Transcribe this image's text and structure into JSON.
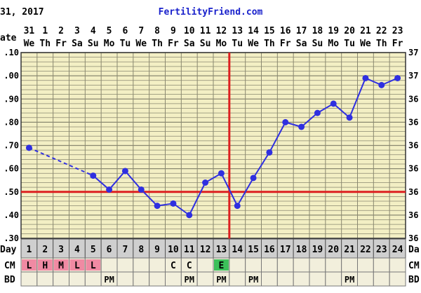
{
  "header": {
    "date_fragment": "31, 2017",
    "site": "FertilityFriend.com"
  },
  "colors": {
    "grid_bg": "#f3efc4",
    "grid_line": "#8a8870",
    "series": "#2f2fe0",
    "coverline": "#dd2020",
    "row_bg": "#f2efdc",
    "day_row_bg": "#cfcfcf",
    "cm_pink": "#f08aa3",
    "cm_green": "#3cc05a"
  },
  "chart_data": {
    "type": "line",
    "title": "",
    "left_tick_labels": [
      ".30",
      ".40",
      ".50",
      ".60",
      ".70",
      ".80",
      ".90",
      ".00",
      ".10"
    ],
    "right_tick_labels": [
      "36",
      "36",
      "36",
      "36",
      "36",
      "36",
      "36",
      "37",
      "37"
    ],
    "left_axis_fragment": "ate",
    "ylim": [
      0.3,
      1.1
    ],
    "dates": [
      "31",
      "1",
      "2",
      "3",
      "4",
      "5",
      "6",
      "7",
      "8",
      "9",
      "10",
      "11",
      "12",
      "13",
      "14",
      "15",
      "16",
      "17",
      "18",
      "19",
      "20",
      "21",
      "22",
      "23"
    ],
    "weekdays": [
      "We",
      "Th",
      "Fr",
      "Sa",
      "Su",
      "Mo",
      "Tu",
      "We",
      "Th",
      "Fr",
      "Sa",
      "Su",
      "Mo",
      "Tu",
      "We",
      "Th",
      "Fr",
      "Sa",
      "Su",
      "Mo",
      "Tu",
      "We",
      "Th",
      "Fr"
    ],
    "days": [
      "1",
      "2",
      "3",
      "4",
      "5",
      "6",
      "7",
      "8",
      "9",
      "10",
      "11",
      "12",
      "13",
      "14",
      "15",
      "16",
      "17",
      "18",
      "19",
      "20",
      "21",
      "22",
      "23",
      "24"
    ],
    "values": [
      0.69,
      null,
      null,
      null,
      0.57,
      0.51,
      0.59,
      0.51,
      0.44,
      0.45,
      0.4,
      0.54,
      0.58,
      0.44,
      0.56,
      0.67,
      0.8,
      0.78,
      0.84,
      0.88,
      0.82,
      0.99,
      0.96,
      0.99
    ],
    "dashed_segment": [
      1,
      5
    ],
    "coverline_value": 0.5,
    "ovulation_day": 13.5,
    "day_label": "Day",
    "cm_label": "CM",
    "bd_label": "BD",
    "right_day_fragment": "Da",
    "right_cm_fragment": "CM",
    "right_bd_fragment": "BD",
    "cm": [
      {
        "day": 1,
        "code": "L",
        "color": "pink"
      },
      {
        "day": 2,
        "code": "H",
        "color": "pink"
      },
      {
        "day": 3,
        "code": "M",
        "color": "pink"
      },
      {
        "day": 4,
        "code": "L",
        "color": "pink"
      },
      {
        "day": 5,
        "code": "L",
        "color": "pink"
      },
      {
        "day": 10,
        "code": "C",
        "color": "none"
      },
      {
        "day": 11,
        "code": "C",
        "color": "none"
      },
      {
        "day": 13,
        "code": "E",
        "color": "green"
      }
    ],
    "bd": [
      {
        "day": 6,
        "code": "PM"
      },
      {
        "day": 11,
        "code": "PM"
      },
      {
        "day": 13,
        "code": "PM"
      },
      {
        "day": 15,
        "code": "PM"
      },
      {
        "day": 21,
        "code": "PM"
      }
    ]
  }
}
